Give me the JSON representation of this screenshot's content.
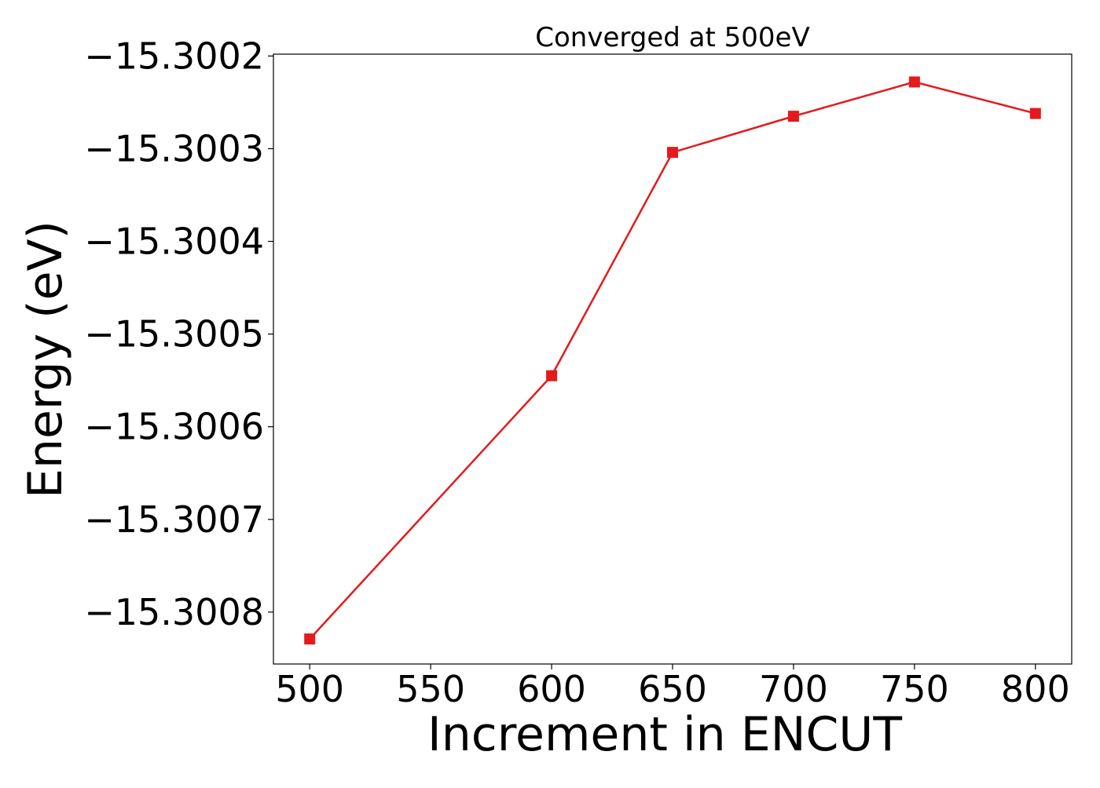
{
  "chart_data": {
    "type": "line",
    "title": "Converged at 500eV",
    "xlabel": "Increment in ENCUT",
    "ylabel": "Energy (eV)",
    "x": [
      500,
      600,
      650,
      700,
      750,
      800
    ],
    "series": [
      {
        "values": [
          -15.300829,
          -15.300545,
          -15.300304,
          -15.300265,
          -15.300228,
          -15.300262
        ],
        "color": "#e41a1c",
        "marker": "square"
      }
    ],
    "xticks": [
      500,
      550,
      600,
      650,
      700,
      750,
      800
    ],
    "xtick_labels": [
      "500",
      "550",
      "600",
      "650",
      "700",
      "750",
      "800"
    ],
    "yticks": [
      -15.3002,
      -15.3003,
      -15.3004,
      -15.3005,
      -15.3006,
      -15.3007,
      -15.3008
    ],
    "ytick_labels": [
      "−15.3002",
      "−15.3003",
      "−15.3004",
      "−15.3005",
      "−15.3006",
      "−15.3007",
      "−15.3008"
    ],
    "xlim": [
      485,
      815
    ],
    "ylim": [
      -15.300856,
      -15.300198
    ],
    "grid": false,
    "legend": false
  }
}
